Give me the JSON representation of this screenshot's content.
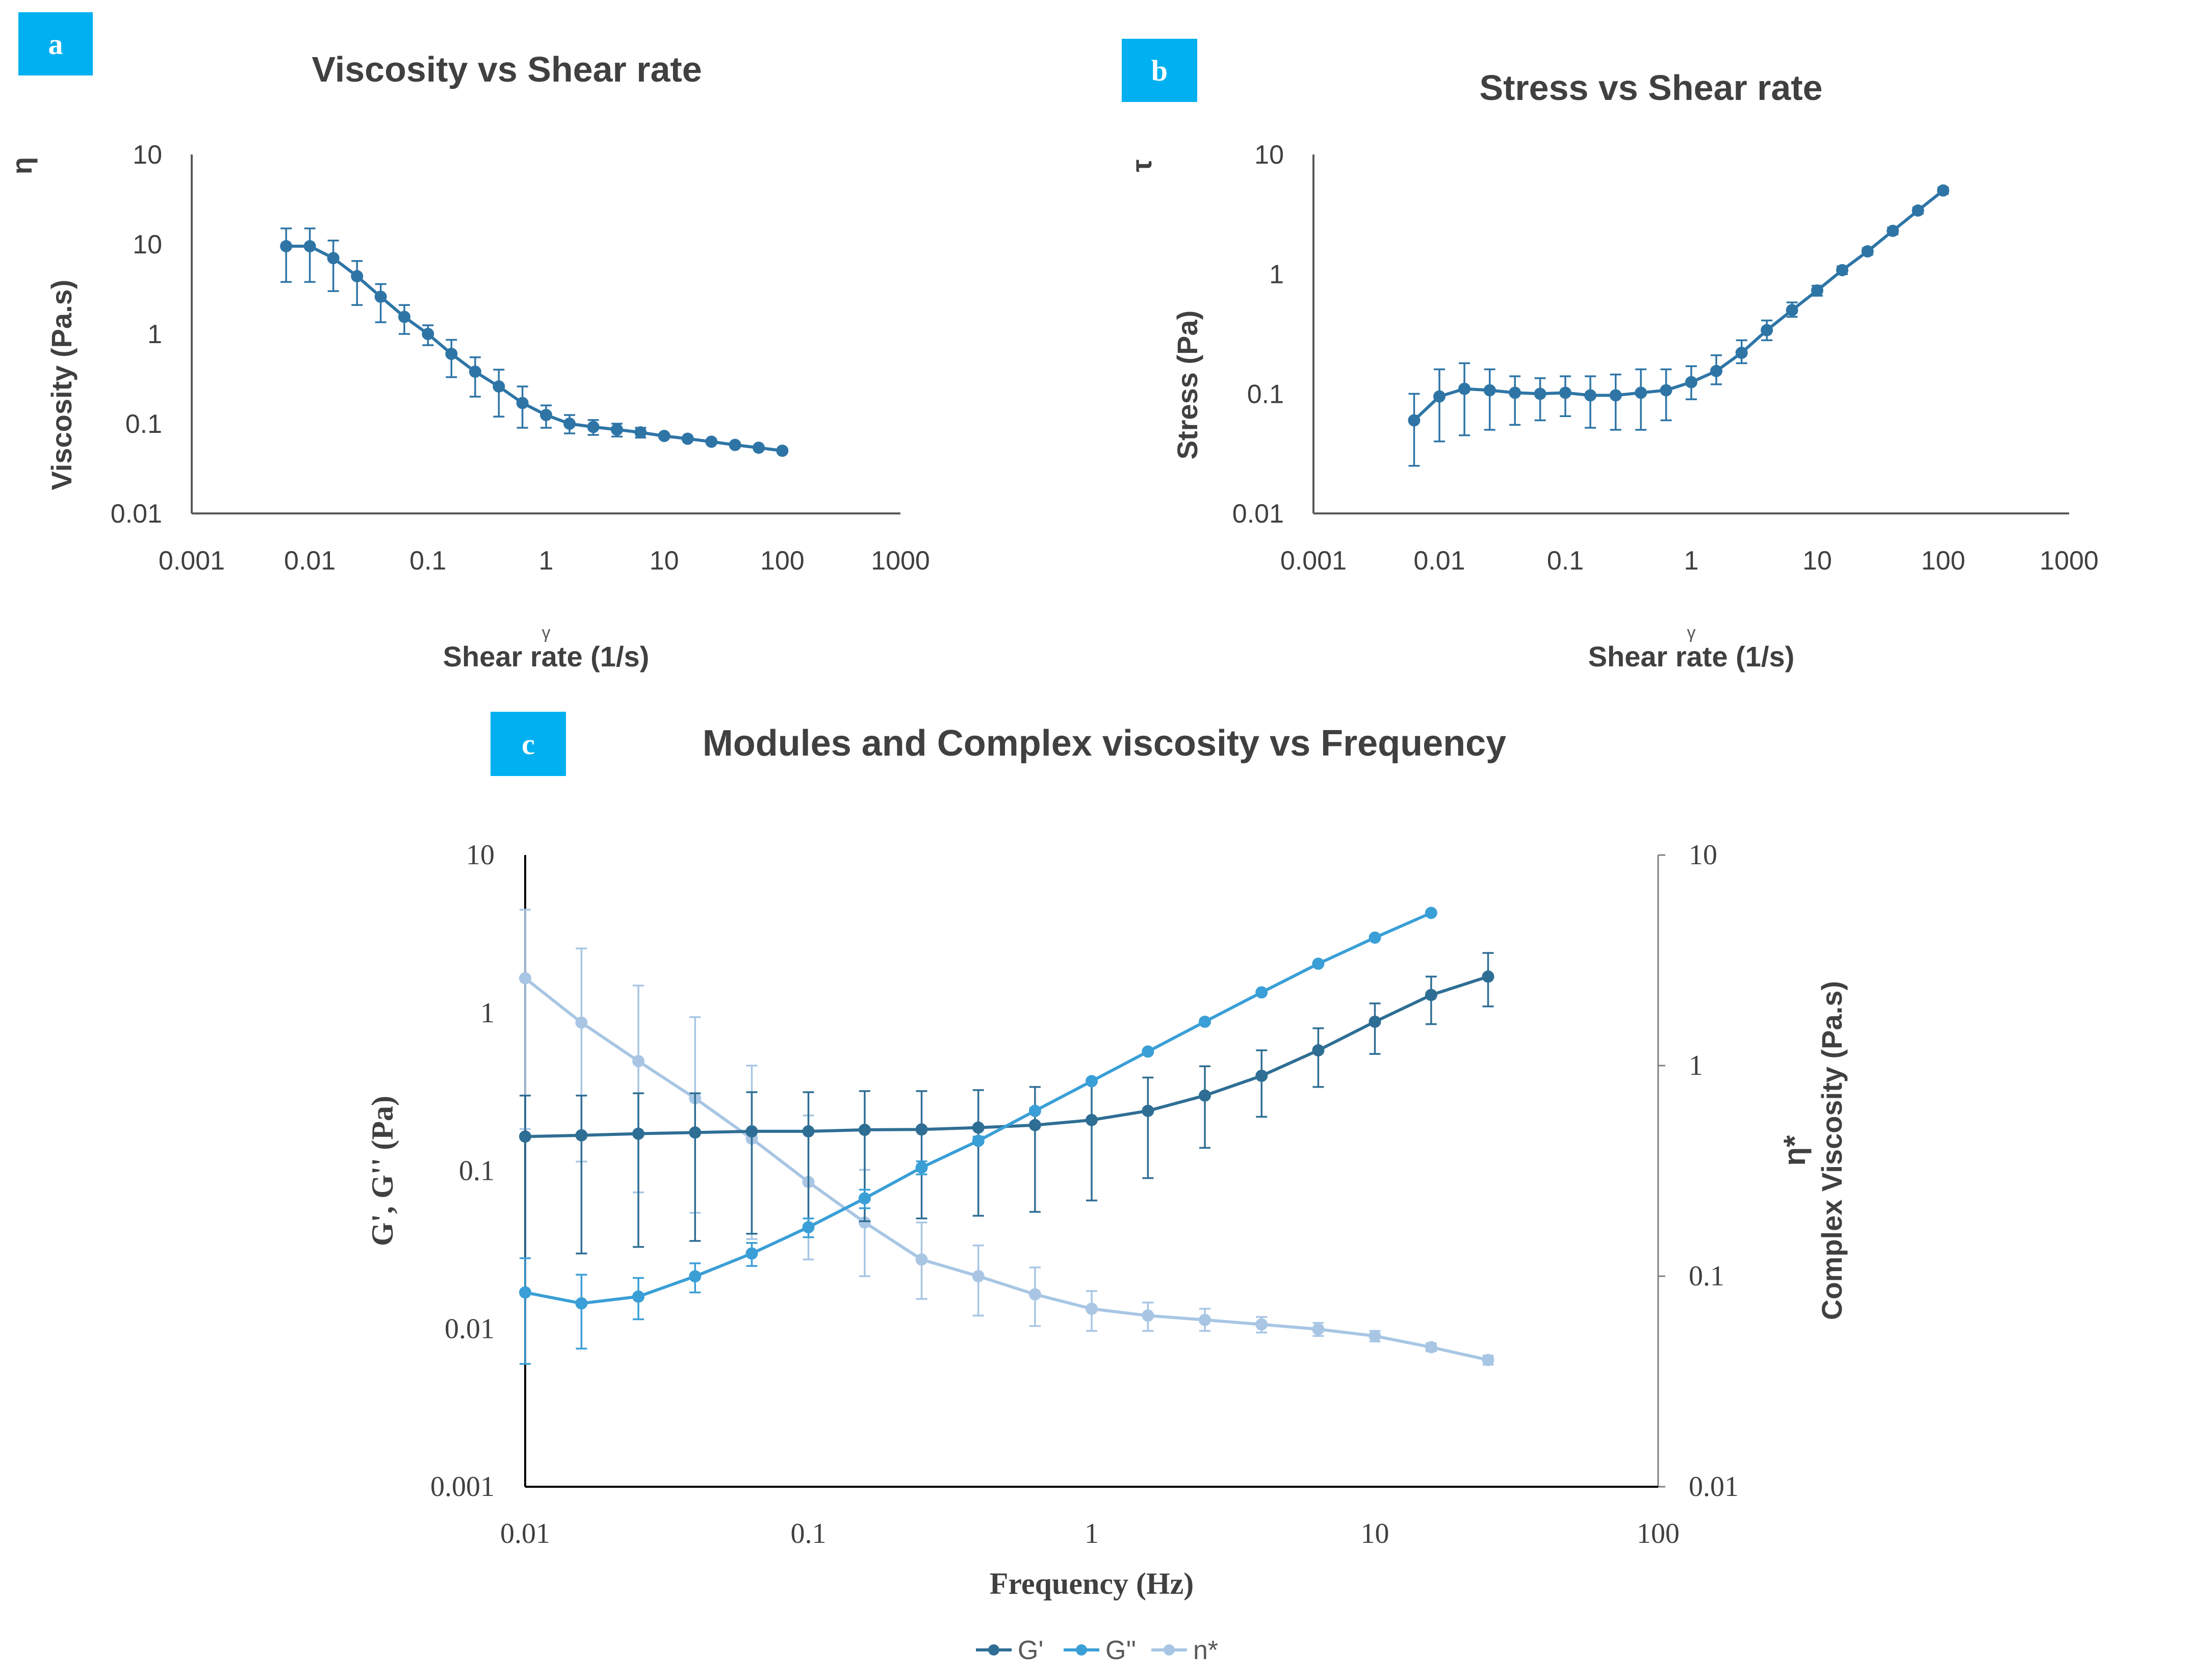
{
  "chart_data": [
    {
      "panel": "a",
      "type": "line",
      "title": "Viscosity vs Shear rate",
      "xlabel_symbol": "γ",
      "xlabel": "Shear rate (1/s)",
      "ylabel_symbol": "η",
      "ylabel": "Viscosity (Pa.s)",
      "xscale": "log",
      "yscale": "log",
      "xlim": [
        0.001,
        1000
      ],
      "ylim": [
        0.01,
        100
      ],
      "xticks": [
        "0.001",
        "0.01",
        "0.1",
        "1",
        "10",
        "100",
        "1000"
      ],
      "yticks": [
        "0.01",
        "0.1",
        "1",
        "10",
        "10"
      ],
      "color": "#2e75a6",
      "series": [
        {
          "name": "Viscosity",
          "x": [
            0.0063,
            0.01,
            0.0158,
            0.0251,
            0.0398,
            0.0631,
            0.1,
            0.158,
            0.251,
            0.398,
            0.631,
            1,
            1.58,
            2.51,
            3.98,
            6.31,
            10,
            15.8,
            25.1,
            39.8,
            63.1,
            100
          ],
          "y": [
            9.5,
            9.5,
            7.0,
            4.4,
            2.6,
            1.55,
            1.0,
            0.6,
            0.38,
            0.26,
            0.17,
            0.125,
            0.1,
            0.092,
            0.086,
            0.08,
            0.073,
            0.068,
            0.063,
            0.058,
            0.054,
            0.05
          ],
          "err_low": [
            3.8,
            3.8,
            3.0,
            2.1,
            1.35,
            1.0,
            0.75,
            0.33,
            0.2,
            0.12,
            0.09,
            0.09,
            0.078,
            0.075,
            0.072,
            0.07,
            0.07,
            0.066,
            0.061,
            0.056,
            0.052,
            0.048
          ],
          "err_high": [
            15,
            15,
            11,
            6.5,
            3.6,
            2.1,
            1.25,
            0.86,
            0.55,
            0.4,
            0.26,
            0.16,
            0.125,
            0.11,
            0.1,
            0.09,
            0.077,
            0.07,
            0.065,
            0.06,
            0.056,
            0.052
          ]
        }
      ]
    },
    {
      "panel": "b",
      "type": "line",
      "title": "Stress vs Shear rate",
      "xlabel_symbol": "γ",
      "xlabel": "Shear rate (1/s)",
      "ylabel_symbol": "τ",
      "ylabel": "Stress (Pa)",
      "xscale": "log",
      "yscale": "log",
      "xlim": [
        0.001,
        1000
      ],
      "ylim": [
        0.01,
        10
      ],
      "xticks": [
        "0.001",
        "0.01",
        "0.1",
        "1",
        "10",
        "100",
        "1000"
      ],
      "yticks": [
        "0.01",
        "0.1",
        "1",
        "10"
      ],
      "color": "#2e75a6",
      "series": [
        {
          "name": "Stress",
          "x": [
            0.0063,
            0.01,
            0.0158,
            0.0251,
            0.0398,
            0.0631,
            0.1,
            0.158,
            0.251,
            0.398,
            0.631,
            1,
            1.58,
            2.51,
            3.98,
            6.31,
            10,
            15.8,
            25.1,
            39.8,
            63.1,
            100
          ],
          "y": [
            0.06,
            0.095,
            0.11,
            0.107,
            0.102,
            0.1,
            0.102,
            0.097,
            0.097,
            0.102,
            0.107,
            0.125,
            0.155,
            0.22,
            0.34,
            0.5,
            0.73,
            1.08,
            1.55,
            2.3,
            3.4,
            5.0
          ],
          "err_low": [
            0.025,
            0.04,
            0.045,
            0.05,
            0.055,
            0.06,
            0.065,
            0.052,
            0.05,
            0.05,
            0.06,
            0.09,
            0.12,
            0.18,
            0.28,
            0.44,
            0.66,
            1.0,
            1.45,
            2.15,
            3.2,
            4.7
          ],
          "err_high": [
            0.1,
            0.16,
            0.18,
            0.16,
            0.14,
            0.135,
            0.14,
            0.14,
            0.145,
            0.16,
            0.16,
            0.17,
            0.21,
            0.28,
            0.41,
            0.58,
            0.8,
            1.16,
            1.65,
            2.45,
            3.6,
            5.3
          ]
        }
      ]
    },
    {
      "panel": "c",
      "type": "line",
      "title": "Modules and Complex viscosity vs Frequency",
      "xlabel": "Frequency (Hz)",
      "ylabel_left": "G', G'' (Pa)",
      "ylabel_right_symbol": "η*",
      "ylabel_right": "Complex Viscosity (Pa.s)",
      "xscale": "log",
      "yscale": "log",
      "xlim": [
        0.01,
        100
      ],
      "ylim_left": [
        0.001,
        10
      ],
      "ylim_right": [
        0.01,
        10
      ],
      "xticks": [
        "0.01",
        "0.1",
        "1",
        "10",
        "100"
      ],
      "yticks_left": [
        "0.001",
        "0.01",
        "0.1",
        "1",
        "10"
      ],
      "yticks_right": [
        "0.01",
        "0.1",
        "1",
        "10"
      ],
      "legend": "bottom",
      "series": [
        {
          "name": "G'",
          "legend_label": "G'",
          "axis": "left",
          "color": "#2f6e94",
          "x": [
            0.01,
            0.0158,
            0.0251,
            0.0398,
            0.0631,
            0.1,
            0.158,
            0.251,
            0.398,
            0.631,
            1,
            1.58,
            2.51,
            3.98,
            6.31,
            10,
            15.8,
            25.1
          ],
          "y": [
            0.165,
            0.168,
            0.172,
            0.175,
            0.178,
            0.178,
            0.182,
            0.183,
            0.188,
            0.195,
            0.21,
            0.24,
            0.3,
            0.4,
            0.58,
            0.88,
            1.3,
            1.7
          ],
          "err_low": [
            0.028,
            0.03,
            0.033,
            0.036,
            0.04,
            0.043,
            0.048,
            0.05,
            0.052,
            0.055,
            0.065,
            0.09,
            0.14,
            0.22,
            0.34,
            0.55,
            0.85,
            1.1
          ],
          "err_high": [
            0.3,
            0.3,
            0.31,
            0.31,
            0.315,
            0.315,
            0.32,
            0.32,
            0.325,
            0.34,
            0.36,
            0.39,
            0.46,
            0.58,
            0.8,
            1.15,
            1.7,
            2.4
          ]
        },
        {
          "name": "G''",
          "legend_label": "G''",
          "axis": "left",
          "color": "#3a9fd6",
          "x": [
            0.01,
            0.0158,
            0.0251,
            0.0398,
            0.0631,
            0.1,
            0.158,
            0.251,
            0.398,
            0.631,
            1,
            1.58,
            2.51,
            3.98,
            6.31,
            10,
            15.8
          ],
          "y": [
            0.017,
            0.0145,
            0.016,
            0.0215,
            0.03,
            0.044,
            0.067,
            0.105,
            0.155,
            0.24,
            0.37,
            0.57,
            0.88,
            1.35,
            2.05,
            3.0,
            4.3
          ],
          "err_low": [
            0.006,
            0.0075,
            0.0115,
            0.017,
            0.025,
            0.038,
            0.058,
            0.095,
            0.15,
            0.235,
            0.36,
            0.56,
            0.87,
            1.33,
            2.02,
            2.97,
            4.25
          ],
          "err_high": [
            0.028,
            0.022,
            0.021,
            0.026,
            0.035,
            0.05,
            0.076,
            0.115,
            0.165,
            0.25,
            0.38,
            0.58,
            0.89,
            1.37,
            2.08,
            3.03,
            4.35
          ]
        },
        {
          "name": "η*",
          "legend_label": "n*",
          "axis": "right",
          "color": "#a8c6e4",
          "x": [
            0.01,
            0.0158,
            0.0251,
            0.0398,
            0.0631,
            0.1,
            0.158,
            0.251,
            0.398,
            0.631,
            1,
            1.58,
            2.51,
            3.98,
            6.31,
            10,
            15.8,
            25.1
          ],
          "y": [
            2.6,
            1.6,
            1.05,
            0.7,
            0.45,
            0.28,
            0.18,
            0.12,
            0.1,
            0.082,
            0.07,
            0.065,
            0.062,
            0.059,
            0.056,
            0.052,
            0.046,
            0.04
          ],
          "err_low": [
            0.5,
            0.35,
            0.25,
            0.2,
            0.15,
            0.12,
            0.1,
            0.078,
            0.065,
            0.058,
            0.055,
            0.055,
            0.055,
            0.054,
            0.052,
            0.049,
            0.044,
            0.038
          ],
          "err_high": [
            5.5,
            3.6,
            2.4,
            1.7,
            1.0,
            0.58,
            0.32,
            0.18,
            0.14,
            0.11,
            0.085,
            0.075,
            0.07,
            0.064,
            0.06,
            0.055,
            0.048,
            0.042
          ]
        }
      ]
    }
  ]
}
